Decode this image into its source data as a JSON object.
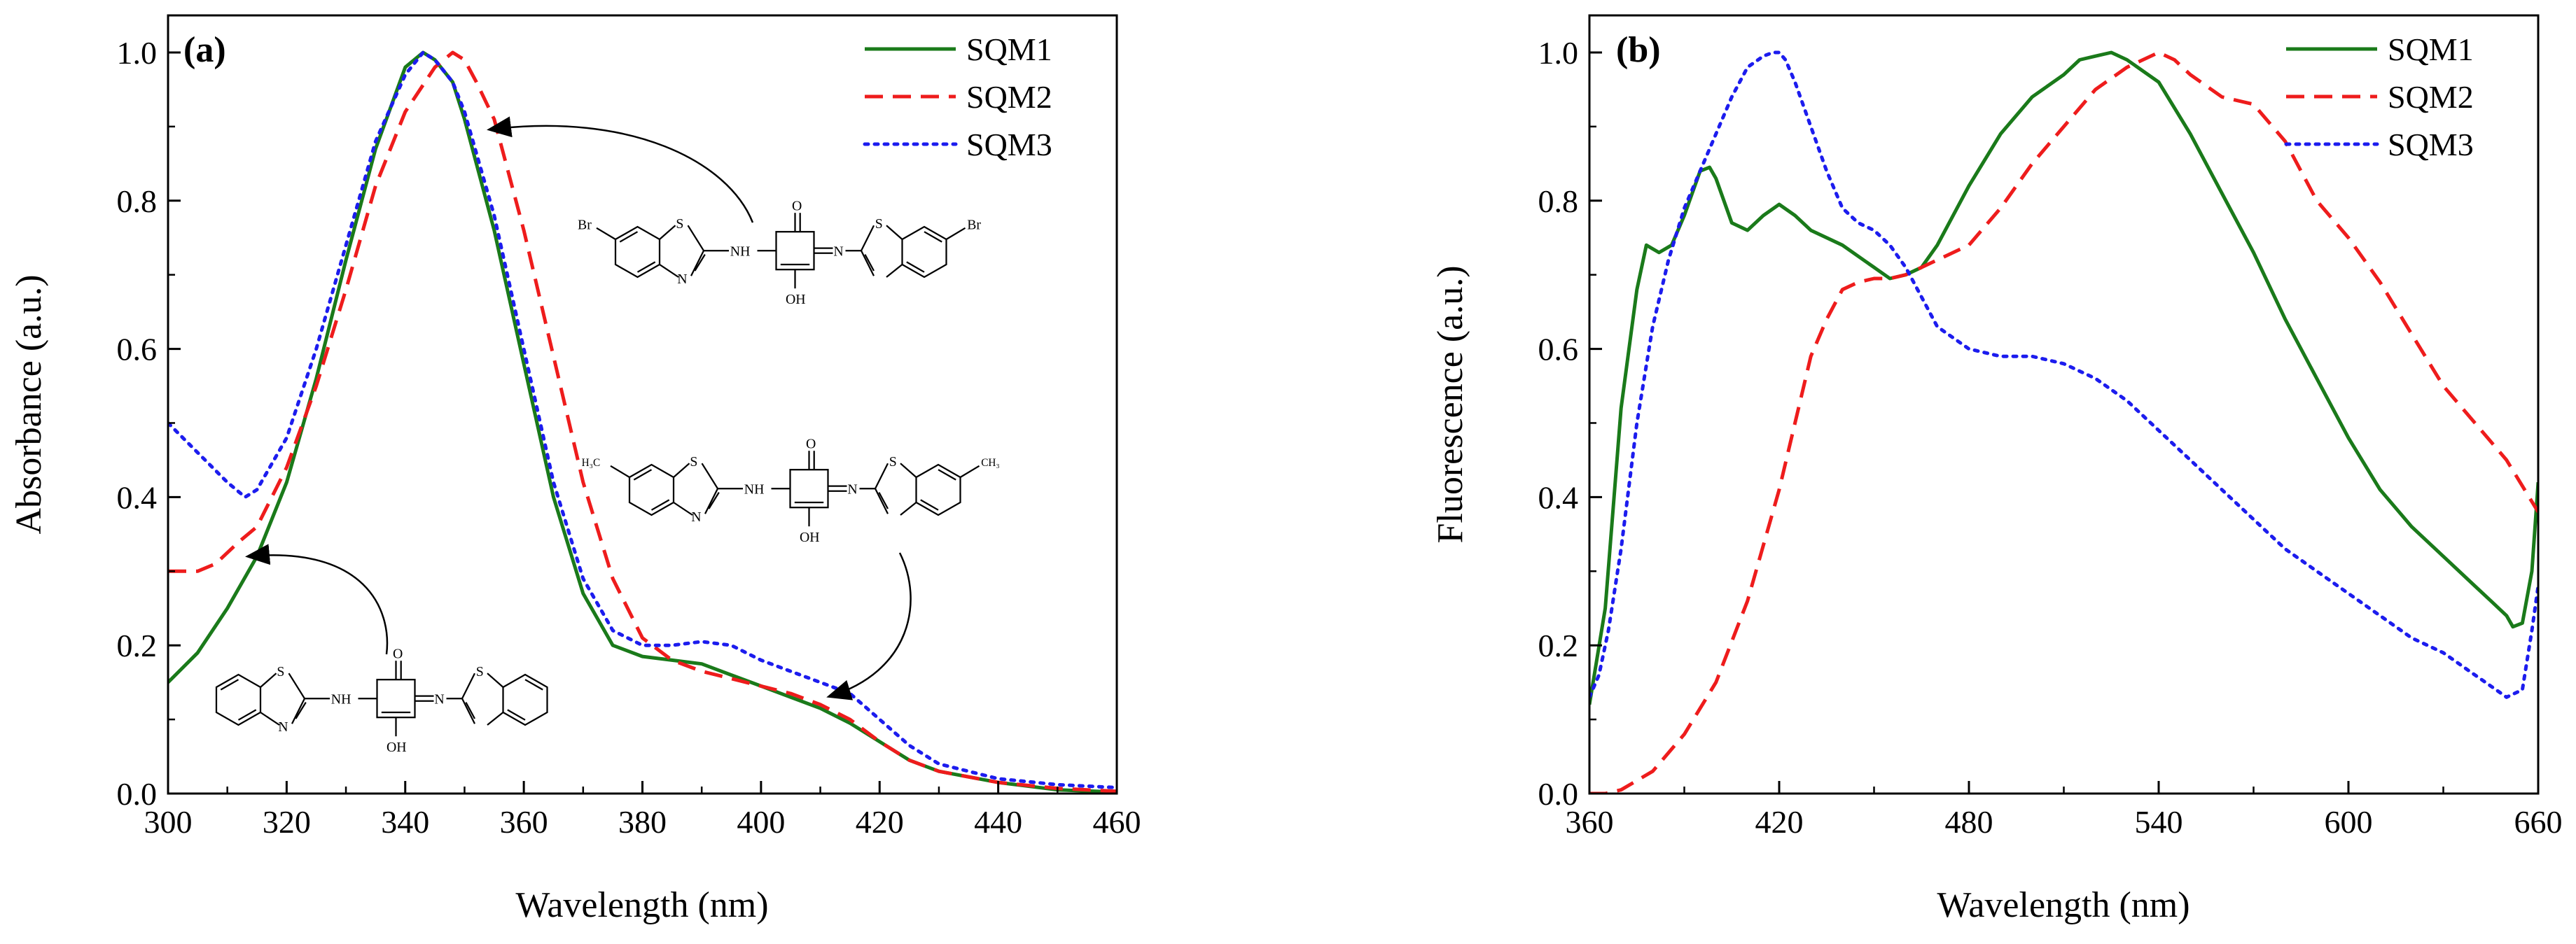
{
  "chart_data": [
    {
      "type": "line",
      "panel_label": "(a)",
      "title": "",
      "xlabel": "Wavelength (nm)",
      "ylabel": "Absorbance (a.u.)",
      "xlim": [
        300,
        460
      ],
      "ylim": [
        0,
        1.05
      ],
      "xticks": [
        300,
        320,
        340,
        360,
        380,
        400,
        420,
        440,
        460
      ],
      "xtick_labels": [
        "300",
        "320",
        "340",
        "360",
        "380",
        "400",
        "420",
        "440",
        "460"
      ],
      "yticks": [
        0,
        0.2,
        0.4,
        0.6,
        0.8,
        1.0
      ],
      "ytick_labels": [
        "0.0",
        "0.2",
        "0.4",
        "0.6",
        "0.8",
        "1.0"
      ],
      "grid": false,
      "legend_position": "top-right",
      "series": [
        {
          "name": "SQM1",
          "color": "#1a7a1a",
          "style": "solid",
          "x": [
            300,
            305,
            310,
            315,
            320,
            325,
            330,
            335,
            340,
            343,
            345,
            348,
            350,
            355,
            360,
            365,
            370,
            375,
            380,
            385,
            390,
            395,
            400,
            405,
            410,
            415,
            420,
            425,
            430,
            440,
            450,
            460
          ],
          "y": [
            0.15,
            0.19,
            0.25,
            0.32,
            0.42,
            0.56,
            0.72,
            0.87,
            0.98,
            1.0,
            0.99,
            0.96,
            0.91,
            0.76,
            0.58,
            0.4,
            0.27,
            0.2,
            0.185,
            0.18,
            0.175,
            0.16,
            0.145,
            0.13,
            0.115,
            0.095,
            0.07,
            0.045,
            0.03,
            0.015,
            0.005,
            0.002
          ]
        },
        {
          "name": "SQM2",
          "color": "#ee1c1c",
          "style": "dashed",
          "x": [
            300,
            305,
            308,
            312,
            315,
            320,
            325,
            330,
            335,
            340,
            345,
            348,
            350,
            352,
            355,
            360,
            365,
            370,
            375,
            380,
            385,
            390,
            395,
            400,
            405,
            410,
            415,
            420,
            425,
            430,
            440,
            450,
            460
          ],
          "y": [
            0.3,
            0.3,
            0.31,
            0.34,
            0.36,
            0.44,
            0.55,
            0.68,
            0.82,
            0.92,
            0.98,
            1.0,
            0.99,
            0.96,
            0.91,
            0.76,
            0.59,
            0.42,
            0.29,
            0.21,
            0.18,
            0.165,
            0.155,
            0.145,
            0.135,
            0.12,
            0.1,
            0.07,
            0.045,
            0.03,
            0.015,
            0.007,
            0.003
          ]
        },
        {
          "name": "SQM3",
          "color": "#1c1cee",
          "style": "dotted",
          "x": [
            300,
            305,
            310,
            313,
            315,
            320,
            325,
            330,
            335,
            340,
            343,
            345,
            348,
            350,
            355,
            360,
            365,
            370,
            375,
            380,
            385,
            390,
            395,
            400,
            405,
            410,
            415,
            420,
            425,
            430,
            440,
            450,
            460
          ],
          "y": [
            0.5,
            0.46,
            0.42,
            0.4,
            0.41,
            0.48,
            0.6,
            0.74,
            0.88,
            0.97,
            1.0,
            0.99,
            0.96,
            0.92,
            0.78,
            0.6,
            0.42,
            0.29,
            0.22,
            0.2,
            0.2,
            0.205,
            0.2,
            0.18,
            0.165,
            0.15,
            0.135,
            0.1,
            0.065,
            0.04,
            0.02,
            0.012,
            0.008
          ]
        }
      ],
      "structures": [
        {
          "name": "structure-sqm3-brominated",
          "points_to_series": "SQM2",
          "labels": [
            "Br",
            "Br",
            "NH",
            "N",
            "S",
            "S",
            "N",
            "O",
            "OH"
          ]
        },
        {
          "name": "structure-sqm2-methylated",
          "points_to_series": "SQM3",
          "labels": [
            "H₃C",
            "CH₃",
            "NH",
            "N",
            "S",
            "S",
            "N",
            "O",
            "OH"
          ]
        },
        {
          "name": "structure-sqm1-unsubstituted",
          "points_to_series": "SQM1",
          "labels": [
            "NH",
            "N",
            "S",
            "S",
            "N",
            "O",
            "OH"
          ]
        }
      ]
    },
    {
      "type": "line",
      "panel_label": "(b)",
      "title": "",
      "xlabel": "Wavelength (nm)",
      "ylabel": "Fluorescence (a.u.)",
      "xlim": [
        360,
        660
      ],
      "ylim": [
        0,
        1.05
      ],
      "xticks": [
        360,
        420,
        480,
        540,
        600,
        660
      ],
      "xtick_labels": [
        "360",
        "420",
        "480",
        "540",
        "600",
        "660"
      ],
      "yticks": [
        0,
        0.2,
        0.4,
        0.6,
        0.8,
        1.0
      ],
      "ytick_labels": [
        "0.0",
        "0.2",
        "0.4",
        "0.6",
        "0.8",
        "1.0"
      ],
      "grid": false,
      "legend_position": "top-right",
      "series": [
        {
          "name": "SQM1",
          "color": "#1a7a1a",
          "style": "solid",
          "x": [
            360,
            365,
            370,
            375,
            378,
            382,
            386,
            390,
            395,
            398,
            400,
            405,
            410,
            415,
            420,
            425,
            430,
            440,
            450,
            455,
            460,
            465,
            470,
            480,
            490,
            500,
            510,
            515,
            520,
            525,
            530,
            540,
            550,
            560,
            570,
            580,
            590,
            600,
            610,
            620,
            630,
            640,
            645,
            650,
            652,
            655,
            658,
            660
          ],
          "y": [
            0.12,
            0.25,
            0.52,
            0.68,
            0.74,
            0.73,
            0.74,
            0.78,
            0.84,
            0.845,
            0.83,
            0.77,
            0.76,
            0.78,
            0.795,
            0.78,
            0.76,
            0.74,
            0.71,
            0.695,
            0.7,
            0.71,
            0.74,
            0.82,
            0.89,
            0.94,
            0.97,
            0.99,
            0.995,
            1.0,
            0.99,
            0.96,
            0.89,
            0.81,
            0.73,
            0.64,
            0.56,
            0.48,
            0.41,
            0.36,
            0.32,
            0.28,
            0.26,
            0.24,
            0.225,
            0.23,
            0.3,
            0.42
          ]
        },
        {
          "name": "SQM2",
          "color": "#ee1c1c",
          "style": "dashed",
          "x": [
            360,
            365,
            370,
            380,
            390,
            400,
            410,
            420,
            425,
            430,
            435,
            440,
            445,
            450,
            455,
            460,
            470,
            480,
            490,
            500,
            510,
            520,
            530,
            535,
            540,
            545,
            550,
            560,
            570,
            580,
            590,
            600,
            610,
            620,
            630,
            640,
            650,
            660
          ],
          "y": [
            0.0,
            0.0,
            0.005,
            0.03,
            0.08,
            0.15,
            0.26,
            0.41,
            0.5,
            0.59,
            0.64,
            0.68,
            0.69,
            0.695,
            0.695,
            0.7,
            0.72,
            0.74,
            0.79,
            0.85,
            0.9,
            0.95,
            0.98,
            0.99,
            1.0,
            0.99,
            0.97,
            0.94,
            0.93,
            0.88,
            0.8,
            0.75,
            0.69,
            0.62,
            0.55,
            0.5,
            0.45,
            0.38
          ]
        },
        {
          "name": "SQM3",
          "color": "#1c1cee",
          "style": "dotted",
          "x": [
            360,
            363,
            366,
            370,
            375,
            380,
            385,
            390,
            395,
            400,
            405,
            410,
            415,
            418,
            420,
            422,
            425,
            430,
            435,
            440,
            445,
            450,
            455,
            460,
            465,
            470,
            480,
            490,
            500,
            510,
            520,
            530,
            540,
            550,
            560,
            570,
            580,
            590,
            600,
            610,
            620,
            630,
            640,
            645,
            650,
            655,
            658,
            660
          ],
          "y": [
            0.13,
            0.16,
            0.22,
            0.33,
            0.5,
            0.63,
            0.72,
            0.79,
            0.84,
            0.89,
            0.94,
            0.98,
            0.995,
            1.0,
            1.0,
            0.99,
            0.96,
            0.9,
            0.84,
            0.79,
            0.77,
            0.76,
            0.74,
            0.71,
            0.67,
            0.63,
            0.6,
            0.59,
            0.59,
            0.58,
            0.56,
            0.53,
            0.49,
            0.45,
            0.41,
            0.37,
            0.33,
            0.3,
            0.27,
            0.24,
            0.21,
            0.19,
            0.16,
            0.145,
            0.13,
            0.14,
            0.22,
            0.28
          ]
        }
      ]
    }
  ]
}
